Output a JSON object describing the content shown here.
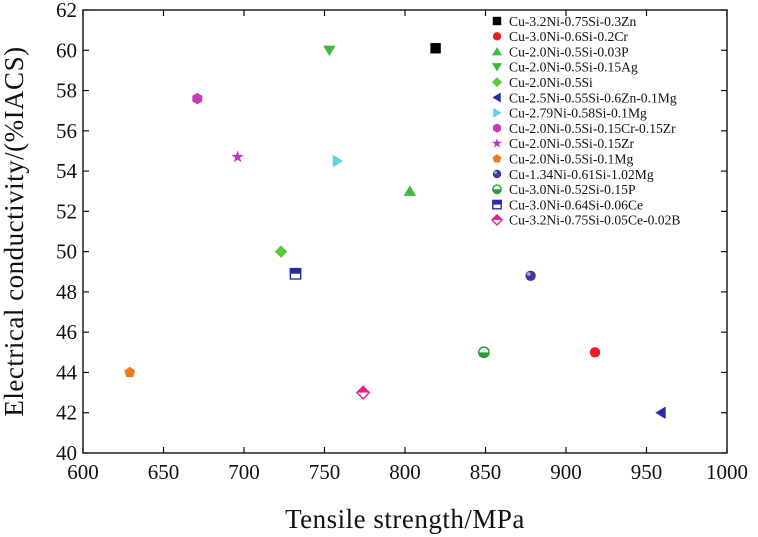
{
  "chart_data": {
    "type": "scatter",
    "title": "",
    "xlabel": "Tensile strength/MPa",
    "ylabel": "Electrical conductivity/(%IACS)",
    "xlim": [
      600,
      1000
    ],
    "ylim": [
      40,
      62
    ],
    "xticks": [
      "600",
      "650",
      "700",
      "750",
      "800",
      "850",
      "900",
      "950",
      "1000"
    ],
    "yticks": [
      "40",
      "42",
      "44",
      "46",
      "48",
      "50",
      "52",
      "54",
      "56",
      "58",
      "60",
      "62"
    ],
    "grid": false,
    "legend_position": "top-right",
    "series": [
      {
        "name": "Cu-3.2Ni-0.75Si-0.3Zn",
        "marker": "square",
        "color": "#000000",
        "x": 819,
        "y": 60.1
      },
      {
        "name": "Cu-3.0Ni-0.6Si-0.2Cr",
        "marker": "circle",
        "color": "#e8202a",
        "x": 918,
        "y": 45.0
      },
      {
        "name": "Cu-2.0Ni-0.5Si-0.03P",
        "marker": "triangle-up",
        "color": "#3dbb3d",
        "x": 803,
        "y": 53.0
      },
      {
        "name": "Cu-2.0Ni-0.5Si-0.15Ag",
        "marker": "triangle-down",
        "color": "#3dbb3d",
        "x": 753,
        "y": 60.0
      },
      {
        "name": "Cu-2.0Ni-0.5Si",
        "marker": "diamond",
        "color": "#5cc93e",
        "x": 723,
        "y": 50.0
      },
      {
        "name": "Cu-2.5Ni-0.55Si-0.6Zn-0.1Mg",
        "marker": "triangle-left",
        "color": "#2a2aa8",
        "x": 959,
        "y": 42.0
      },
      {
        "name": "Cu-2.79Ni-0.58Si-0.1Mg",
        "marker": "triangle-right",
        "color": "#5bd2e8",
        "x": 758,
        "y": 54.5
      },
      {
        "name": "Cu-2.0Ni-0.5Si-0.15Cr-0.15Zr",
        "marker": "hexagon",
        "color": "#c83ab8",
        "x": 671,
        "y": 57.6
      },
      {
        "name": "Cu-2.0Ni-0.5Si-0.15Zr",
        "marker": "star",
        "color": "#b83ac0",
        "x": 696,
        "y": 54.7
      },
      {
        "name": "Cu-2.0Ni-0.5Si-0.1Mg",
        "marker": "pentagon",
        "color": "#ef7a1a",
        "x": 629,
        "y": 44.0
      },
      {
        "name": "Cu-1.34Ni-0.61Si-1.02Mg",
        "marker": "sphere",
        "color": "#3a3aa0",
        "x": 878,
        "y": 48.8
      },
      {
        "name": "Cu-3.0Ni-0.52Si-0.15P",
        "marker": "half-circle",
        "color": "#2e9a3a",
        "x": 849,
        "y": 45.0
      },
      {
        "name": "Cu-3.0Ni-0.64Si-0.06Ce",
        "marker": "half-square",
        "color": "#2a2aa8",
        "x": 732,
        "y": 48.9
      },
      {
        "name": "Cu-3.2Ni-0.75Si-0.05Ce-0.02B",
        "marker": "half-diamond",
        "color": "#e8208a",
        "x": 774,
        "y": 43.0
      }
    ]
  }
}
